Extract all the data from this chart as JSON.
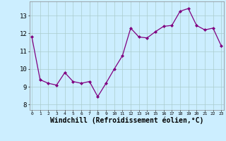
{
  "x": [
    0,
    1,
    2,
    3,
    4,
    5,
    6,
    7,
    8,
    9,
    10,
    11,
    12,
    13,
    14,
    15,
    16,
    17,
    18,
    19,
    20,
    21,
    22,
    23
  ],
  "y": [
    11.8,
    9.4,
    9.2,
    9.1,
    9.8,
    9.3,
    9.2,
    9.3,
    8.45,
    9.2,
    10.0,
    10.75,
    12.3,
    11.8,
    11.75,
    12.1,
    12.4,
    12.45,
    13.25,
    13.4,
    12.45,
    12.2,
    12.3,
    11.3
  ],
  "line_color": "#800080",
  "marker": "D",
  "marker_size": 2,
  "bg_color": "#cceeff",
  "grid_color": "#aacccc",
  "xlabel": "Windchill (Refroidissement éolien,°C)",
  "xlabel_fontsize": 7,
  "yticks": [
    8,
    9,
    10,
    11,
    12,
    13
  ],
  "xtick_labels": [
    "0",
    "1",
    "2",
    "3",
    "4",
    "5",
    "6",
    "7",
    "8",
    "9",
    "10",
    "11",
    "12",
    "13",
    "14",
    "15",
    "16",
    "17",
    "18",
    "19",
    "20",
    "21",
    "22",
    "23"
  ],
  "ylim": [
    7.7,
    13.8
  ],
  "xlim": [
    -0.3,
    23.3
  ]
}
